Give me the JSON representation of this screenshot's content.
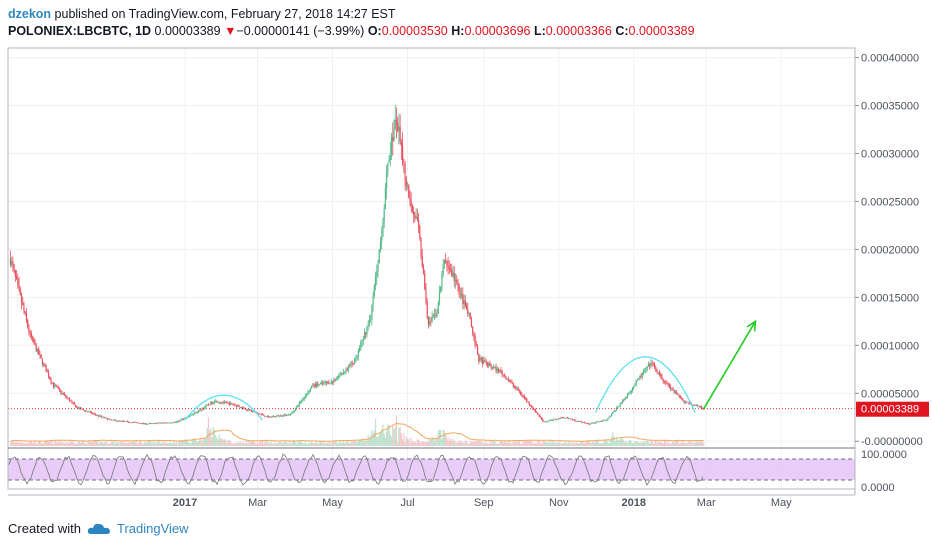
{
  "header": {
    "author": "dzekon",
    "published_text": "published on TradingView.com, February 27, 2018 14:27 EST",
    "symbol": "POLONIEX:LBCBTC, 1D",
    "last": "0.00003389",
    "change_arrow": "▼",
    "change": "−0.00000141 (−3.99%)",
    "o_label": "O:",
    "o_value": "0.00003530",
    "h_label": "H:",
    "h_value": "0.00003696",
    "l_label": "L:",
    "l_value": "0.00003366",
    "c_label": "C:",
    "c_value": "0.00003389"
  },
  "chart_data": {
    "type": "candlestick",
    "price_axis": {
      "ticks": [
        "0.00040000",
        "0.00035000",
        "0.00030000",
        "0.00025000",
        "0.00020000",
        "0.00015000",
        "0.00010000",
        "0.00005000",
        "-0.00000000"
      ],
      "tick_values": [
        0.0004,
        0.00035,
        0.0003,
        0.00025,
        0.0002,
        0.00015,
        0.0001,
        5e-05,
        0
      ],
      "range": [
        -5e-06,
        0.00041
      ]
    },
    "time_axis": {
      "labels": [
        "2017",
        "Mar",
        "May",
        "Jul",
        "Sep",
        "Nov",
        "2018",
        "Mar",
        "May"
      ],
      "label_dates": [
        "2017-01-01",
        "2017-03-01",
        "2017-05-01",
        "2017-07-01",
        "2017-09-01",
        "2017-11-01",
        "2018-01-01",
        "2018-03-01",
        "2018-05-01"
      ],
      "bold_labels": [
        "2017",
        "2018"
      ],
      "range": [
        "2016-08-10",
        "2018-06-30"
      ]
    },
    "last_price_label": "0.00003389",
    "last_price": 3.389e-05,
    "price_path": [
      [
        "2016-08-12",
        0.00019
      ],
      [
        "2016-08-28",
        0.00011
      ],
      [
        "2016-09-15",
        6e-05
      ],
      [
        "2016-10-05",
        3.5e-05
      ],
      [
        "2016-11-01",
        2.2e-05
      ],
      [
        "2016-12-01",
        1.8e-05
      ],
      [
        "2016-12-25",
        2e-05
      ],
      [
        "2017-01-10",
        3e-05
      ],
      [
        "2017-01-25",
        4.2e-05
      ],
      [
        "2017-02-10",
        3.8e-05
      ],
      [
        "2017-03-10",
        2.5e-05
      ],
      [
        "2017-03-28",
        2.8e-05
      ],
      [
        "2017-04-15",
        5.8e-05
      ],
      [
        "2017-05-01",
        6.2e-05
      ],
      [
        "2017-05-20",
        8.5e-05
      ],
      [
        "2017-06-01",
        0.00013
      ],
      [
        "2017-06-10",
        0.00022
      ],
      [
        "2017-06-16",
        0.0003
      ],
      [
        "2017-06-22",
        0.000335
      ],
      [
        "2017-06-30",
        0.00027
      ],
      [
        "2017-07-10",
        0.00022
      ],
      [
        "2017-07-18",
        0.00012
      ],
      [
        "2017-07-25",
        0.000135
      ],
      [
        "2017-07-31",
        0.00019
      ],
      [
        "2017-08-08",
        0.00017
      ],
      [
        "2017-08-20",
        0.00013
      ],
      [
        "2017-08-28",
        8.5e-05
      ],
      [
        "2017-09-15",
        7.2e-05
      ],
      [
        "2017-10-01",
        5e-05
      ],
      [
        "2017-10-20",
        2e-05
      ],
      [
        "2017-11-05",
        2.5e-05
      ],
      [
        "2017-11-25",
        1.8e-05
      ],
      [
        "2017-12-10",
        2.2e-05
      ],
      [
        "2017-12-25",
        4.5e-05
      ],
      [
        "2018-01-05",
        6.5e-05
      ],
      [
        "2018-01-15",
        8.2e-05
      ],
      [
        "2018-01-25",
        6.3e-05
      ],
      [
        "2018-02-10",
        4.2e-05
      ],
      [
        "2018-02-27",
        3.389e-05
      ]
    ],
    "volume_peaks": [
      [
        "2017-01-20",
        0.9
      ],
      [
        "2017-06-05",
        0.55
      ],
      [
        "2017-06-20",
        0.9
      ],
      [
        "2017-07-28",
        0.45
      ],
      [
        "2017-12-15",
        0.35
      ]
    ],
    "annotations": [
      {
        "type": "arc",
        "start": "2017-01-01",
        "end": "2017-03-05",
        "peak_price": 4.8e-05,
        "base_price": 2.2e-05,
        "color": "#5ce1f0"
      },
      {
        "type": "arc",
        "start": "2017-12-01",
        "end": "2018-02-20",
        "peak_price": 8.8e-05,
        "base_price": 3e-05,
        "color": "#5ce1f0"
      },
      {
        "type": "arrow",
        "from": [
          "2018-02-27",
          3.389e-05
        ],
        "to": [
          "2018-04-10",
          0.000125
        ],
        "color": "#22cc22"
      }
    ],
    "oscillator": {
      "ticks": [
        "100.0000",
        "0.0000"
      ],
      "band_color": "#e7c8f7",
      "band_levels": [
        80,
        20
      ]
    },
    "colors": {
      "up": "#53b987",
      "down": "#eb4d5c",
      "volume_ma": "#f5a65b",
      "last_line": "#e0141e",
      "grid": "#eef0f3"
    }
  },
  "footer": {
    "created_with": "Created with",
    "brand": "TradingView"
  }
}
